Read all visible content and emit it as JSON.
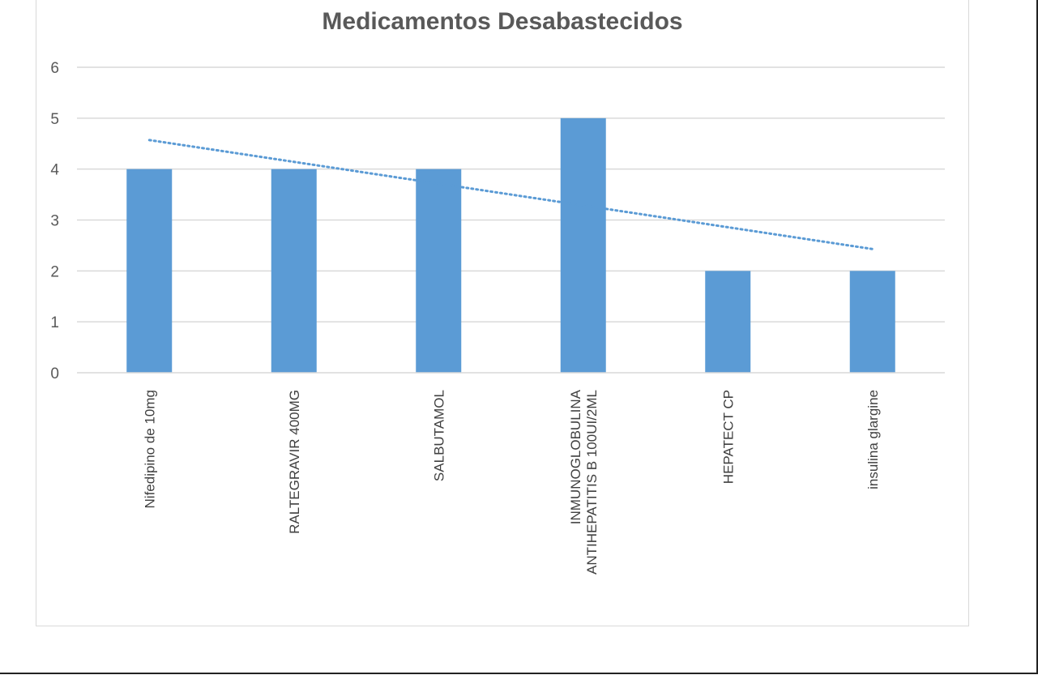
{
  "chart_data": {
    "type": "bar",
    "title": "Medicamentos Desabastecidos",
    "categories": [
      [
        "Nifedipino de 10mg"
      ],
      [
        "RALTEGRAVIR 400MG"
      ],
      [
        "SALBUTAMOL"
      ],
      [
        "INMUNOGLOBULINA",
        "ANTIHEPATITIS B 100UI/2ML"
      ],
      [
        "HEPATECT CP"
      ],
      [
        "insulina glargine"
      ]
    ],
    "values": [
      4,
      4,
      4,
      5,
      2,
      2
    ],
    "ylim": [
      0,
      6
    ],
    "yticks": [
      0,
      1,
      2,
      3,
      4,
      5,
      6
    ],
    "trendline": {
      "type": "linear",
      "style": "dotted",
      "start": 4.57,
      "end": 2.43
    },
    "grid": true,
    "legend": "none",
    "colors": {
      "bar": "#5b9bd5",
      "trendline": "#5b9bd5",
      "grid": "#d9d9d9",
      "axis": "#d9d9d9",
      "text": "#595959"
    }
  }
}
